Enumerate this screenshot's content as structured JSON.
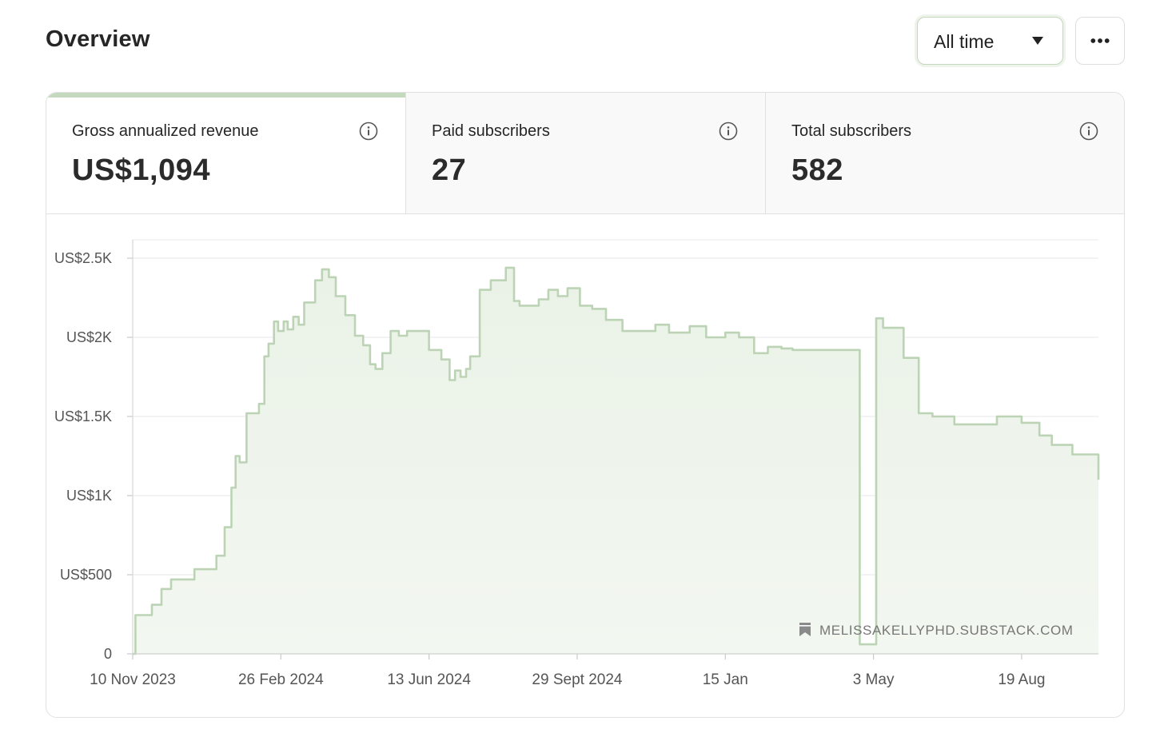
{
  "header": {
    "title": "Overview",
    "range_select": {
      "value": "All time"
    },
    "more_button": {
      "icon": "more-horizontal-icon"
    }
  },
  "stats": [
    {
      "label": "Gross annualized revenue",
      "value": "US$1,094",
      "active": true,
      "icon": "info-icon"
    },
    {
      "label": "Paid subscribers",
      "value": "27",
      "active": false,
      "icon": "info-icon"
    },
    {
      "label": "Total subscribers",
      "value": "582",
      "active": false,
      "icon": "info-icon"
    }
  ],
  "chart_data": {
    "type": "area",
    "title": "",
    "xlabel": "",
    "ylabel": "",
    "y_tick_labels": [
      "0",
      "US$500",
      "US$1K",
      "US$1.5K",
      "US$2K",
      "US$2.5K"
    ],
    "y_ticks": [
      0,
      500,
      1000,
      1500,
      2000,
      2500
    ],
    "ylim": [
      0,
      2500
    ],
    "x_tick_labels": [
      "10 Nov 2023",
      "26 Feb 2024",
      "13 Jun 2024",
      "29 Sept 2024",
      "15 Jan",
      "3 May",
      "19 Aug"
    ],
    "grid": true,
    "colors": {
      "line": "#bcd4b5",
      "fill": "#eef4eb"
    },
    "watermark": {
      "text": "MELISSAKELLYPHD.SUBSTACK.COM",
      "icon": "bookmark-icon"
    },
    "series": [
      {
        "x": [
          "2023-11-10",
          "2023-11-12",
          "2023-11-19",
          "2023-11-24",
          "2023-12-01",
          "2023-12-08",
          "2023-12-14",
          "2023-12-25",
          "2024-01-06",
          "2024-01-10",
          "2024-01-16",
          "2024-01-21",
          "2024-01-24",
          "2024-01-27",
          "2024-02-01",
          "2024-02-07",
          "2024-02-10",
          "2024-02-14",
          "2024-02-17",
          "2024-02-21",
          "2024-02-24",
          "2024-02-28",
          "2024-03-02",
          "2024-03-06",
          "2024-03-10",
          "2024-03-14",
          "2024-03-17",
          "2024-03-22",
          "2024-03-27",
          "2024-04-01",
          "2024-04-06",
          "2024-04-13",
          "2024-04-20",
          "2024-04-26",
          "2024-05-01",
          "2024-05-05",
          "2024-05-10",
          "2024-05-16",
          "2024-05-22",
          "2024-05-28",
          "2024-06-05",
          "2024-06-13",
          "2024-06-22",
          "2024-06-28",
          "2024-07-02",
          "2024-07-06",
          "2024-07-10",
          "2024-07-13",
          "2024-07-20",
          "2024-07-28",
          "2024-08-08",
          "2024-08-14",
          "2024-08-18",
          "2024-08-25",
          "2024-09-01",
          "2024-09-08",
          "2024-09-15",
          "2024-09-22",
          "2024-10-01",
          "2024-10-10",
          "2024-10-20",
          "2024-11-01",
          "2024-11-15",
          "2024-11-25",
          "2024-12-05",
          "2024-12-20",
          "2025-01-01",
          "2025-01-15",
          "2025-01-25",
          "2025-02-05",
          "2025-02-15",
          "2025-02-25",
          "2025-03-05",
          "2025-04-15",
          "2025-04-19",
          "2025-04-23",
          "2025-05-01",
          "2025-05-05",
          "2025-05-10",
          "2025-05-19",
          "2025-05-25",
          "2025-06-05",
          "2025-06-15",
          "2025-07-01",
          "2025-07-15",
          "2025-08-01",
          "2025-08-19",
          "2025-09-01",
          "2025-09-10",
          "2025-09-25",
          "2025-10-08",
          "2025-10-14"
        ],
        "y": [
          0,
          245,
          245,
          310,
          410,
          470,
          470,
          535,
          535,
          620,
          800,
          1050,
          1250,
          1210,
          1520,
          1520,
          1580,
          1880,
          1960,
          2100,
          2040,
          2100,
          2050,
          2130,
          2080,
          2220,
          2220,
          2360,
          2430,
          2380,
          2260,
          2140,
          2010,
          1950,
          1830,
          1800,
          1900,
          2040,
          2010,
          2040,
          2040,
          1920,
          1860,
          1730,
          1790,
          1750,
          1800,
          1880,
          2300,
          2360,
          2440,
          2230,
          2200,
          2200,
          2240,
          2300,
          2260,
          2310,
          2200,
          2180,
          2110,
          2040,
          2040,
          2080,
          2030,
          2070,
          2000,
          2030,
          2000,
          1900,
          1940,
          1930,
          1920,
          1920,
          1920,
          60,
          60,
          2120,
          2060,
          2060,
          1870,
          1520,
          1500,
          1450,
          1450,
          1500,
          1460,
          1380,
          1320,
          1260,
          1260,
          1100
        ]
      }
    ]
  }
}
